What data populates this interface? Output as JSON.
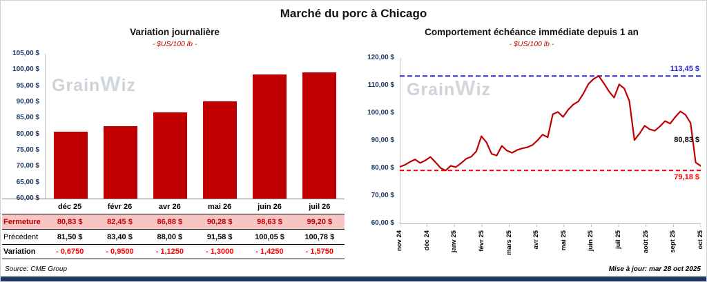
{
  "page": {
    "title": "Marché du porc à Chicago",
    "source": "Source: CME Group",
    "updated": "Mise à jour: mar 28 oct 2025"
  },
  "watermark": {
    "parts": [
      "Grain",
      "W",
      "iz"
    ]
  },
  "colors": {
    "bar": "#C00000",
    "series": "#C00000",
    "max_dash": "#2929CC",
    "min_dash": "#FF0000",
    "axis_label": "#17375E",
    "highlight_row": "#F7C5C3",
    "footer_bar": "#1F3864",
    "axis_line": "#BFBFBF"
  },
  "chart_data": [
    {
      "type": "bar",
      "title": "Variation journalière",
      "subtitle": "- $US/100 lb -",
      "categories": [
        "déc 25",
        "févr 26",
        "avr 26",
        "mai 26",
        "juin 26",
        "juil 26"
      ],
      "values": [
        80.83,
        82.45,
        86.88,
        90.28,
        98.63,
        99.2
      ],
      "ylim": [
        60,
        105
      ],
      "ytick_labels": [
        "105,00 $",
        "100,00 $",
        "95,00 $",
        "90,00 $",
        "85,00 $",
        "80,00 $",
        "75,00 $",
        "70,00 $",
        "65,00 $",
        "60,00 $"
      ],
      "grid": false,
      "table": {
        "rows": [
          {
            "label": "Fermeture",
            "style": "close",
            "values": [
              "80,83  $",
              "82,45  $",
              "86,88  $",
              "90,28  $",
              "98,63  $",
              "99,20  $"
            ]
          },
          {
            "label": "Précédent",
            "style": "prev",
            "values": [
              "81,50  $",
              "83,40  $",
              "88,00  $",
              "91,58  $",
              "100,05  $",
              "100,78  $"
            ]
          },
          {
            "label": "Variation",
            "style": "var",
            "values": [
              "- 0,6750",
              "- 0,9500",
              "- 1,1250",
              "- 1,3000",
              "- 1,4250",
              "- 1,5750"
            ]
          }
        ]
      }
    },
    {
      "type": "line",
      "title": "Comportement échéance immédiate depuis 1 an",
      "subtitle": "- $US/100 lb -",
      "x_labels": [
        "nov 24",
        "déc 24",
        "janv 25",
        "févr 25",
        "mars 25",
        "avr 25",
        "mai 25",
        "juin 25",
        "juil 25",
        "août 25",
        "sept 25",
        "oct 25"
      ],
      "ylim": [
        60,
        120
      ],
      "ytick_labels": [
        "120,00 $",
        "110,00 $",
        "100,00 $",
        "90,00 $",
        "80,00 $",
        "70,00 $",
        "60,00 $"
      ],
      "grid": false,
      "max_line": {
        "value": 113.45,
        "label": "113,45 $"
      },
      "min_line": {
        "value": 79.18,
        "label": "79,18 $"
      },
      "last_point": {
        "value": 80.83,
        "label": "80,83 $",
        "label_y_value": 90
      },
      "values": [
        80.5,
        81.2,
        82.3,
        83.2,
        81.9,
        82.8,
        84.1,
        82.2,
        80.1,
        79.18,
        80.9,
        80.4,
        81.8,
        83.4,
        84.2,
        86.1,
        91.6,
        89.4,
        85.2,
        84.6,
        88.1,
        86.4,
        85.6,
        86.6,
        87.2,
        87.6,
        88.4,
        90.1,
        92.2,
        91.2,
        99.6,
        100.4,
        98.6,
        101.2,
        103.1,
        104.2,
        107.1,
        110.6,
        112.4,
        113.45,
        110.8,
        107.9,
        105.6,
        110.4,
        108.9,
        104.4,
        90.2,
        92.6,
        95.4,
        94.1,
        93.6,
        95.2,
        97.1,
        96.2,
        98.6,
        100.6,
        99.4,
        96.4,
        82.1,
        80.83
      ]
    }
  ]
}
